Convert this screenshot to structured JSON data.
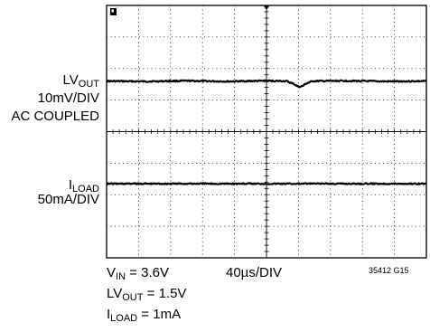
{
  "chart_data": {
    "type": "line",
    "title": "",
    "xlabel": "",
    "ylabel": "",
    "grid": true,
    "divisions": {
      "x": 10,
      "y": 8
    },
    "timebase": "40µs/DIV",
    "timebase_us_per_div": 40,
    "time_range_us": [
      0,
      400
    ],
    "series": [
      {
        "name_main": "LV",
        "name_sub": "OUT",
        "scale": "10mV/DIV",
        "coupling": "AC COUPLED",
        "trace_level_div_from_top": 2.4,
        "points_us_mv": [
          [
            0,
            0
          ],
          [
            50,
            -0.1
          ],
          [
            100,
            0.1
          ],
          [
            150,
            -0.1
          ],
          [
            200,
            0.1
          ],
          [
            225,
            0
          ],
          [
            235,
            -1.0
          ],
          [
            240,
            -1.8
          ],
          [
            245,
            -1.6
          ],
          [
            250,
            -0.7
          ],
          [
            258,
            0
          ],
          [
            300,
            0.1
          ],
          [
            350,
            -0.1
          ],
          [
            400,
            0
          ]
        ]
      },
      {
        "name_main": "I",
        "name_sub": "LOAD",
        "scale": "50mA/DIV",
        "trace_level_div_from_top": 5.65,
        "points_us_ma": [
          [
            0,
            0
          ],
          [
            400,
            0
          ]
        ]
      }
    ],
    "conditions": [
      {
        "main": "V",
        "sub": "IN",
        "rest": " = 3.6V"
      },
      {
        "main": "LV",
        "sub": "OUT",
        "rest": " = 1.5V"
      },
      {
        "main": "I",
        "sub": "LOAD",
        "rest": " = 1mA"
      }
    ],
    "figure_id": "35412 G15"
  }
}
